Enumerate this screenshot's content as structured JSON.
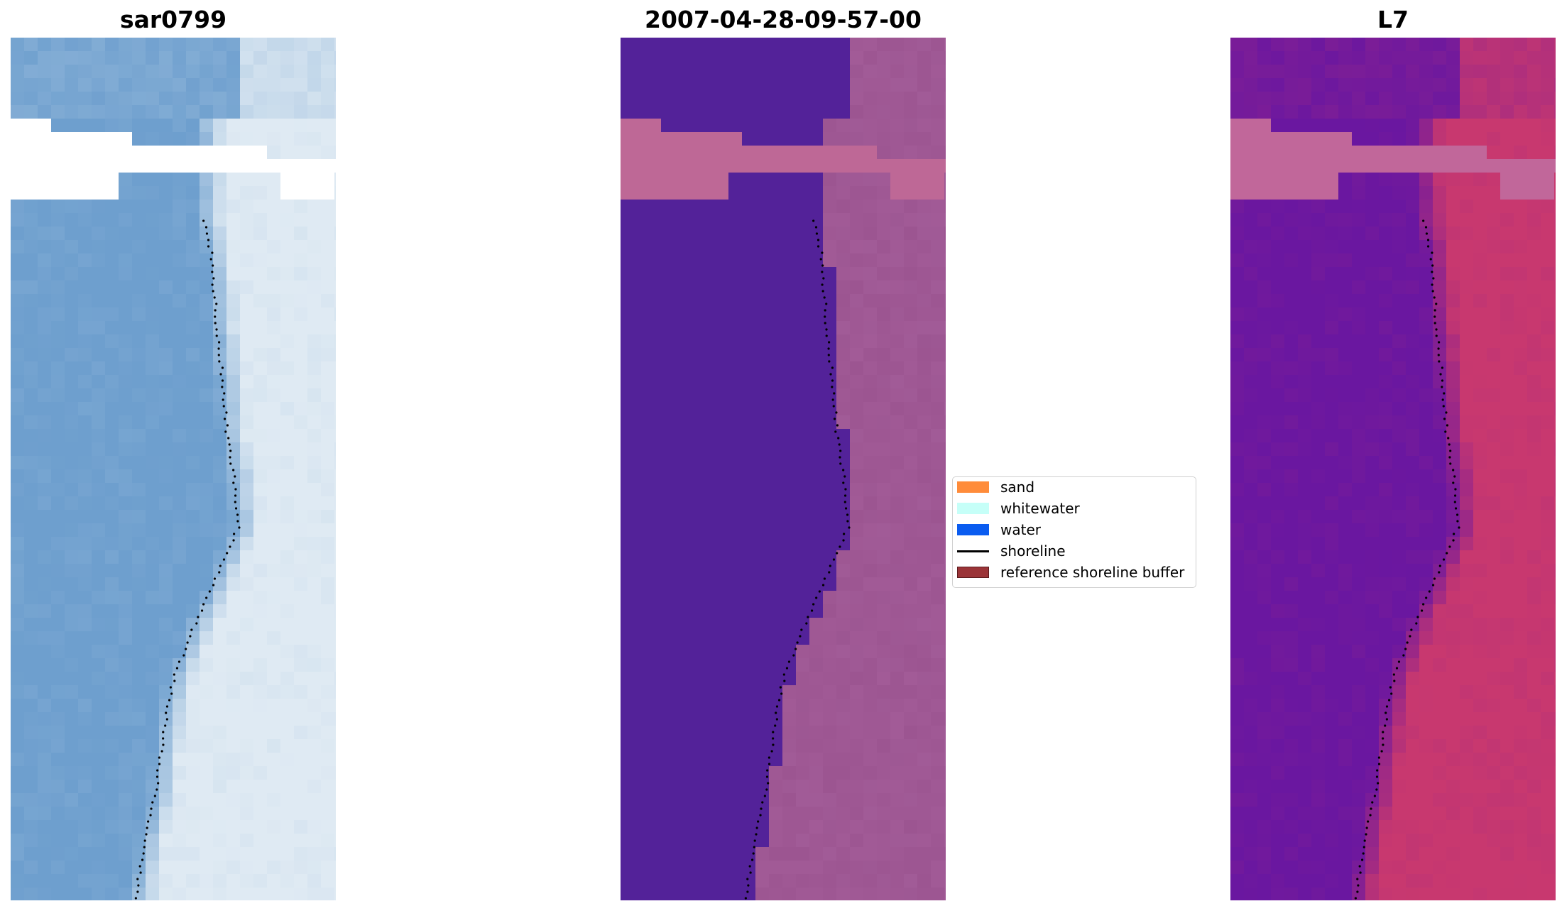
{
  "panels": [
    {
      "title": "sar0799",
      "kind": "rgb"
    },
    {
      "title": "2007-04-28-09-57-00",
      "kind": "classified"
    },
    {
      "title": "L7",
      "kind": "index"
    }
  ],
  "legend": [
    {
      "label": "sand",
      "color": "#ff8c3a",
      "type": "patch"
    },
    {
      "label": "whitewater",
      "color": "#c6fff8",
      "type": "patch"
    },
    {
      "label": "water",
      "color": "#0a5cf0",
      "type": "patch"
    },
    {
      "label": "shoreline",
      "color": "#000000",
      "type": "line"
    },
    {
      "label": "reference shoreline buffer",
      "color": "#9b3438",
      "type": "patch",
      "edge": "#5a1a1c"
    }
  ],
  "colors": {
    "rgb_water": "#6e9fce",
    "rgb_surf": "#dfeaf3",
    "classified_water": "#532299",
    "classified_land": "#9c5591",
    "classified_buffer": "#be6896",
    "index_water": "#6a17a0",
    "index_land": "#c8386f",
    "index_buffer": "#c1679a"
  }
}
